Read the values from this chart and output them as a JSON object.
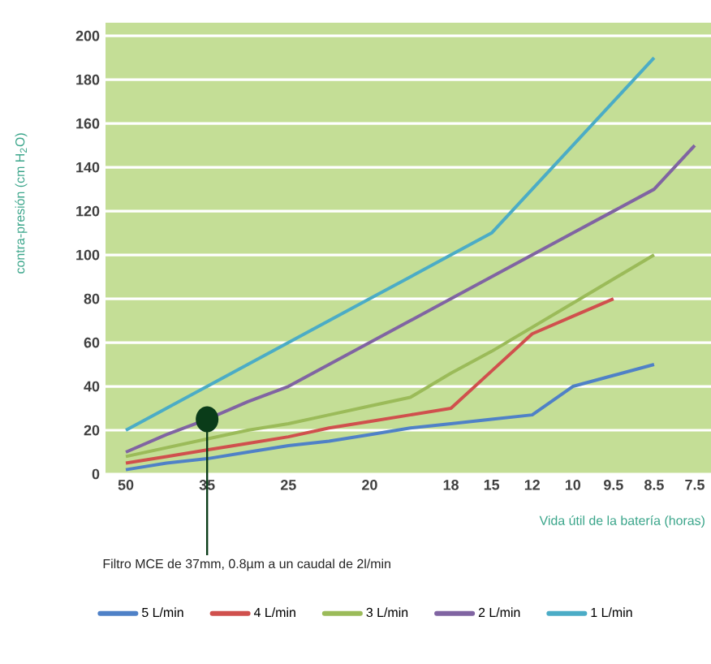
{
  "chart_data": {
    "type": "line",
    "ylabel": "contra-presión  (cm H$_{2}$O)",
    "xlabel": "Vida útil de la batería (horas)",
    "categories": [
      "50",
      null,
      "35",
      null,
      "25",
      null,
      "20",
      null,
      "18",
      "15",
      "12",
      "10",
      "9.5",
      "8.5",
      "7.5"
    ],
    "ylim": [
      0,
      206
    ],
    "yticks": [
      0,
      20,
      40,
      60,
      80,
      100,
      120,
      140,
      160,
      180,
      200
    ],
    "grid": "y",
    "legend": "bottom",
    "line_style": "solid",
    "marker": "none",
    "series": [
      {
        "name": "5 L/min",
        "color": "#4f81c7",
        "values": [
          2,
          5,
          7,
          10,
          13,
          15,
          18,
          21,
          23,
          25,
          27,
          40,
          45,
          50,
          null
        ]
      },
      {
        "name": "4 L/min",
        "color": "#d0504d",
        "values": [
          5,
          8,
          11,
          14,
          17,
          21,
          24,
          27,
          30,
          47,
          64,
          72,
          80,
          null,
          null
        ]
      },
      {
        "name": "3 L/min",
        "color": "#9bbb59",
        "values": [
          8,
          12,
          16,
          20,
          23,
          27,
          31,
          35,
          46,
          56,
          67,
          78,
          89,
          100,
          null
        ]
      },
      {
        "name": "2 L/min",
        "color": "#8064a2",
        "values": [
          10,
          18,
          25,
          33,
          40,
          50,
          60,
          70,
          80,
          90,
          100,
          110,
          120,
          130,
          150
        ]
      },
      {
        "name": "1 L/min",
        "color": "#4bacc6",
        "values": [
          20,
          30,
          40,
          50,
          60,
          70,
          80,
          90,
          100,
          110,
          130,
          150,
          170,
          190,
          null
        ]
      }
    ],
    "annotations": [
      {
        "text": "Filtro MCE de 37mm, 0.8µm a un caudal de 2l/min",
        "x": "35",
        "y": 25
      }
    ]
  }
}
